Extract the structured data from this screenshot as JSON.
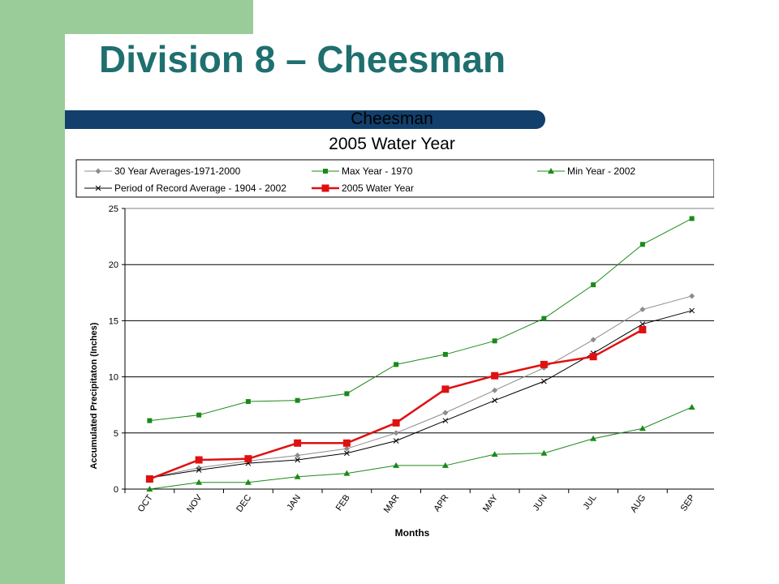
{
  "slide": {
    "title": "Division 8 – Cheesman"
  },
  "colors": {
    "sidebar": "#99cc99",
    "title_text": "#1f6f6f",
    "accent_bar": "#123f6b"
  },
  "chart_data": {
    "type": "line",
    "title": "Cheesman",
    "subtitle": "2005 Water Year",
    "xlabel": "Months",
    "ylabel": "Accumulated Precipitaton (Inches)",
    "ylim": [
      0,
      25
    ],
    "yticks": [
      0,
      5,
      10,
      15,
      20,
      25
    ],
    "grid": "horizontal",
    "legend_position": "top",
    "categories": [
      "OCT",
      "NOV",
      "DEC",
      "JAN",
      "FEB",
      "MAR",
      "APR",
      "MAY",
      "JUN",
      "JUL",
      "AUG",
      "SEP"
    ],
    "series": [
      {
        "name": "30 Year Averages-1971-2000",
        "color": "#8c8c8c",
        "marker": "diamond",
        "values": [
          1.0,
          1.9,
          2.5,
          3.0,
          3.6,
          5.0,
          6.8,
          8.8,
          10.8,
          13.3,
          16.0,
          17.2
        ]
      },
      {
        "name": "Max Year - 1970",
        "color": "#1a8a1a",
        "marker": "square",
        "values": [
          6.1,
          6.6,
          7.8,
          7.9,
          8.5,
          11.1,
          12.0,
          13.2,
          15.2,
          18.2,
          21.8,
          24.1
        ]
      },
      {
        "name": "Min Year - 2002",
        "color": "#1a8a1a",
        "marker": "triangle",
        "values": [
          0.0,
          0.6,
          0.6,
          1.1,
          1.4,
          2.1,
          2.1,
          3.1,
          3.2,
          4.5,
          5.4,
          7.3
        ]
      },
      {
        "name": "Period of Record Average - 1904 - 2002",
        "color": "#000000",
        "marker": "x",
        "values": [
          1.0,
          1.7,
          2.3,
          2.6,
          3.2,
          4.3,
          6.1,
          7.9,
          9.6,
          12.1,
          14.7,
          15.9
        ]
      },
      {
        "name": "2005 Water Year",
        "color": "#e01010",
        "marker": "bigsquare",
        "values": [
          0.9,
          2.6,
          2.7,
          4.1,
          4.1,
          5.9,
          8.9,
          10.1,
          11.1,
          11.8,
          14.2,
          null
        ]
      }
    ]
  }
}
